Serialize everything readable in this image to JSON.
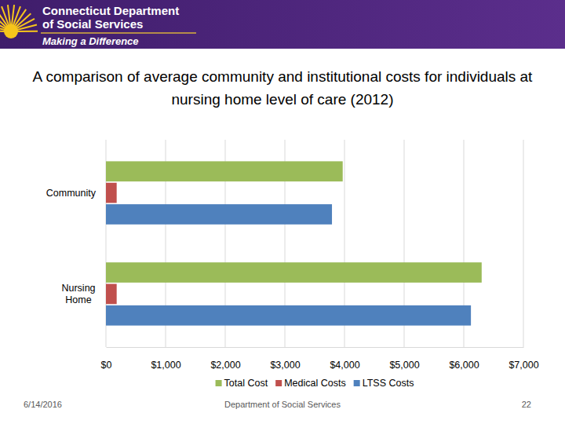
{
  "header": {
    "org_lines": [
      "Connecticut Department",
      "of Social Services"
    ],
    "tagline": "Making a Difference"
  },
  "footer": {
    "date": "6/14/2016",
    "center": "Department of Social Services",
    "page": "22"
  },
  "chart_data": {
    "type": "bar",
    "orientation": "horizontal",
    "title": "A comparison of average community and institutional costs for individuals at nursing home level of care (2012)",
    "categories": [
      "Community",
      "Nursing Home"
    ],
    "series": [
      {
        "name": "Total Cost",
        "color": "#9bbb59",
        "values": [
          3970,
          6300
        ]
      },
      {
        "name": "Medical Costs",
        "color": "#c0504d",
        "values": [
          180,
          180
        ]
      },
      {
        "name": "LTSS Costs",
        "color": "#4f81bd",
        "values": [
          3790,
          6120
        ]
      }
    ],
    "xlim": [
      0,
      7000
    ],
    "xticks": [
      {
        "value": 0,
        "label": "$0"
      },
      {
        "value": 1000,
        "label": "$1,000"
      },
      {
        "value": 2000,
        "label": "$2,000"
      },
      {
        "value": 3000,
        "label": "$3,000"
      },
      {
        "value": 4000,
        "label": "$4,000"
      },
      {
        "value": 5000,
        "label": "$5,000"
      },
      {
        "value": 6000,
        "label": "$6,000"
      },
      {
        "value": 7000,
        "label": "$7,000"
      }
    ],
    "grid": true,
    "legend": "bottom"
  }
}
